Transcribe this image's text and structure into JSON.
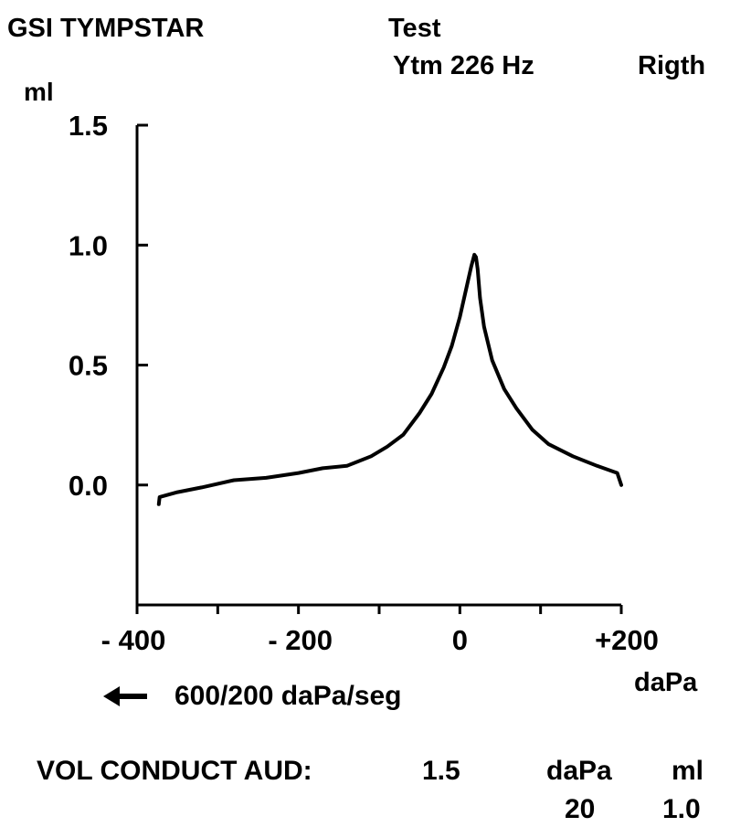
{
  "header": {
    "device": "GSI  TYMPSTAR",
    "test_label": "Test",
    "test_params": "Ytm  226  Hz",
    "ear": "Rigth"
  },
  "footer": {
    "rate_text": "600/200 daPa/seg",
    "vol_label": "VOL CONDUCT  AUD:",
    "vol_value": "1.5",
    "peak_pressure_label": "daPa",
    "peak_pressure_value": "20",
    "peak_compliance_label": "ml",
    "peak_compliance_value": "1.0"
  },
  "icons": {
    "arrow": "left-arrow-icon"
  },
  "colors": {
    "line": "#000000",
    "background": "#ffffff"
  },
  "chart_data": {
    "type": "line",
    "title": "",
    "xlabel": "daPa",
    "ylabel": "ml",
    "xlim": [
      -400,
      200
    ],
    "ylim": [
      -0.5,
      1.5
    ],
    "x_ticks": [
      -400,
      -300,
      -200,
      -100,
      0,
      100,
      200
    ],
    "x_tick_labels": [
      {
        "value": -400,
        "label": "- 400"
      },
      {
        "value": -200,
        "label": "- 200"
      },
      {
        "value": 0,
        "label": "0"
      },
      {
        "value": 200,
        "label": "+200"
      }
    ],
    "y_ticks": [
      {
        "value": 1.5,
        "label": "1.5"
      },
      {
        "value": 1.0,
        "label": "1.0"
      },
      {
        "value": 0.5,
        "label": "0.5"
      },
      {
        "value": 0.0,
        "label": "0.0"
      }
    ],
    "grid": false,
    "series": [
      {
        "x": [
          -373,
          -372,
          -350,
          -320,
          -280,
          -240,
          -200,
          -170,
          -140,
          -110,
          -90,
          -70,
          -50,
          -35,
          -20,
          -10,
          0,
          8,
          14,
          18,
          20,
          22,
          25,
          30,
          40,
          55,
          70,
          90,
          110,
          140,
          170,
          195,
          200
        ],
        "y": [
          -0.08,
          -0.05,
          -0.03,
          -0.01,
          0.02,
          0.03,
          0.05,
          0.07,
          0.08,
          0.12,
          0.16,
          0.21,
          0.3,
          0.38,
          0.49,
          0.58,
          0.7,
          0.82,
          0.91,
          0.96,
          0.95,
          0.9,
          0.78,
          0.66,
          0.52,
          0.4,
          0.32,
          0.23,
          0.17,
          0.12,
          0.08,
          0.05,
          0.0
        ]
      }
    ]
  }
}
